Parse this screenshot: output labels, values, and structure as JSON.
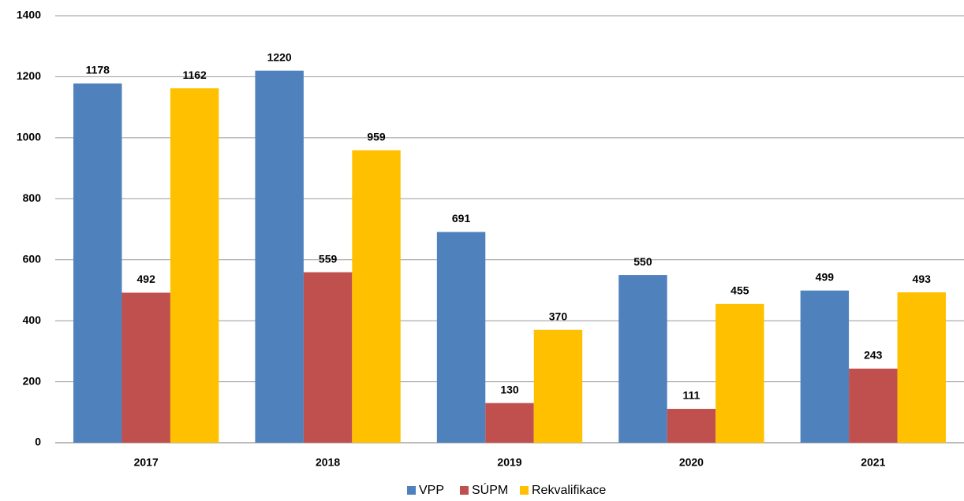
{
  "chart_data": {
    "type": "bar",
    "categories": [
      "2017",
      "2018",
      "2019",
      "2020",
      "2021"
    ],
    "series": [
      {
        "name": "VPP",
        "color": "#4f81bd",
        "values": [
          1178,
          1220,
          691,
          550,
          499
        ]
      },
      {
        "name": "SÚPM",
        "color": "#c0504d",
        "values": [
          492,
          559,
          130,
          111,
          243
        ]
      },
      {
        "name": "Rekvalifikace",
        "color": "#ffc000",
        "values": [
          1162,
          959,
          370,
          455,
          493
        ]
      }
    ],
    "ylim": [
      0,
      1400
    ],
    "yticks": [
      0,
      200,
      400,
      600,
      800,
      1000,
      1200,
      1400
    ],
    "grid": true,
    "legend": "bottom"
  }
}
